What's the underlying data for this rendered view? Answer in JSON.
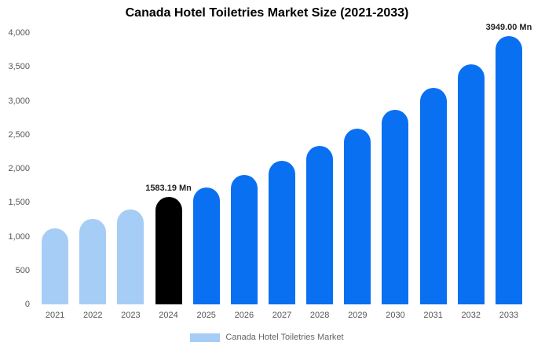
{
  "title": "Canada Hotel Toiletries Market Size (2021-2033)",
  "legend": {
    "label": "Canada Hotel Toiletries Market",
    "swatch_color": "#a6cdf5"
  },
  "colors": {
    "historical": "#a6cdf5",
    "base_year": "#000000",
    "forecast": "#0a70f2",
    "background": "#ffffff"
  },
  "chart_data": {
    "type": "bar",
    "title": "Canada Hotel Toiletries Market Size (2021-2033)",
    "categories": [
      "2021",
      "2022",
      "2023",
      "2024",
      "2025",
      "2026",
      "2027",
      "2028",
      "2029",
      "2030",
      "2031",
      "2032",
      "2033"
    ],
    "values": [
      1120,
      1255,
      1395,
      1583.19,
      1720,
      1905,
      2110,
      2340,
      2590,
      2865,
      3185,
      3540,
      3949
    ],
    "bar_colors": [
      "#a6cdf5",
      "#a6cdf5",
      "#a6cdf5",
      "#000000",
      "#0a70f2",
      "#0a70f2",
      "#0a70f2",
      "#0a70f2",
      "#0a70f2",
      "#0a70f2",
      "#0a70f2",
      "#0a70f2",
      "#0a70f2"
    ],
    "annotations": [
      {
        "category": "2024",
        "text": "1583.19 Mn"
      },
      {
        "category": "2033",
        "text": "3949.00 Mn"
      }
    ],
    "xlabel": "",
    "ylabel": "",
    "ylim": [
      0,
      4000
    ],
    "yticks": [
      {
        "value": 4000,
        "label": "4,000"
      },
      {
        "value": 3500,
        "label": "3,500"
      },
      {
        "value": 3000,
        "label": "3,000"
      },
      {
        "value": 2500,
        "label": "2,500"
      },
      {
        "value": 2000,
        "label": "2,000"
      },
      {
        "value": 1500,
        "label": "1,500"
      },
      {
        "value": 1000,
        "label": "1,000"
      },
      {
        "value": 500,
        "label": "500"
      },
      {
        "value": 0,
        "label": "0"
      }
    ],
    "grid": false,
    "legend_position": "bottom"
  }
}
